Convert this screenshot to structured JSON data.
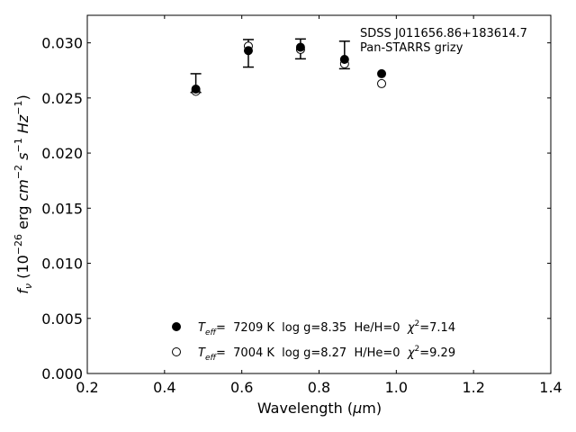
{
  "chart_data": {
    "type": "scatter",
    "xlabel_prefix": "Wavelength (",
    "xlabel_mu": "μ",
    "xlabel_suffix": "m)",
    "ylabel": {
      "f": "f",
      "nu": "ν",
      "p1": " (10",
      "exp26": "−26",
      "p2": " erg ",
      "cm": "cm",
      "expm2": "−2",
      "s": "s",
      "expm1": "−1",
      "hz": "Hz",
      "expm1b": "−1",
      "close": ")"
    },
    "xlim": [
      0.2,
      1.4
    ],
    "ylim": [
      0.0,
      0.0325
    ],
    "xticks": [
      0.2,
      0.4,
      0.6,
      0.8,
      1.0,
      1.2,
      1.4
    ],
    "xtick_labels": [
      "0.2",
      "0.4",
      "0.6",
      "0.8",
      "1.0",
      "1.2",
      "1.4"
    ],
    "yticks": [
      0.0,
      0.005,
      0.01,
      0.015,
      0.02,
      0.025,
      0.03
    ],
    "ytick_labels": [
      "0.000",
      "0.005",
      "0.010",
      "0.015",
      "0.020",
      "0.025",
      "0.030"
    ],
    "annotations": [
      "SDSS J011656.86+183614.7",
      "Pan-STARRS grizy"
    ],
    "observed": {
      "x": [
        0.481,
        0.617,
        0.752,
        0.866,
        0.962
      ],
      "y": [
        0.02635,
        0.02905,
        0.02945,
        0.0289,
        null
      ],
      "yerr": [
        0.00085,
        0.00125,
        0.0009,
        0.00125,
        null
      ]
    },
    "series": [
      {
        "marker": "filled",
        "x": [
          0.481,
          0.617,
          0.752,
          0.866,
          0.962
        ],
        "y": [
          0.0258,
          0.0293,
          0.0296,
          0.0285,
          0.0272
        ]
      },
      {
        "marker": "open",
        "x": [
          0.481,
          0.617,
          0.752,
          0.866,
          0.962
        ],
        "y": [
          0.0256,
          0.0297,
          0.0294,
          0.0281,
          0.0263
        ]
      }
    ],
    "legend": [
      {
        "marker": "filled",
        "teff_label": "T",
        "teff_sub": "eff",
        "text": "=  7209 K  log g=8.35  He/H=0  ",
        "chi": "χ",
        "chi_sup": "2",
        "chi_val": "=7.14"
      },
      {
        "marker": "open",
        "teff_label": "T",
        "teff_sub": "eff",
        "text": "=  7004 K  log g=8.27  H/He=0  ",
        "chi": "χ",
        "chi_sup": "2",
        "chi_val": "=9.29"
      }
    ]
  }
}
